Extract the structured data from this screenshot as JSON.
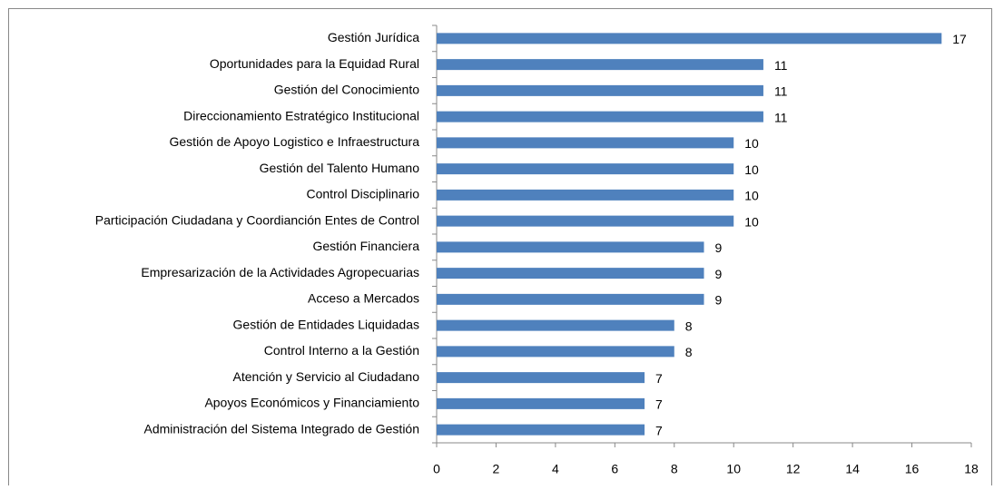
{
  "chart_data": {
    "type": "bar",
    "orientation": "horizontal",
    "categories": [
      "Gestión Jurídica",
      "Oportunidades para la Equidad Rural",
      "Gestión del Conocimiento",
      "Direccionamiento Estratégico  Institucional",
      "Gestión de Apoyo Logistico e Infraestructura",
      "Gestión del Talento Humano",
      "Control Disciplinario",
      "Participación Ciudadana  y Coordianción Entes de Control",
      "Gestión Financiera",
      "Empresarización de la Actividades Agropecuarias",
      "Acceso a Mercados",
      "Gestión de Entidades  Liquidadas",
      "Control Interno a la Gestión",
      "Atención y Servicio al Ciudadano",
      "Apoyos Económicos y Financiamiento",
      "Administración del Sistema Integrado de Gestión"
    ],
    "values": [
      17,
      11,
      11,
      11,
      10,
      10,
      10,
      10,
      9,
      9,
      9,
      8,
      8,
      7,
      7,
      7
    ],
    "color": "#4f81bd",
    "xlim": [
      0,
      18
    ],
    "xticks": [
      0,
      2,
      4,
      6,
      8,
      10,
      12,
      14,
      16,
      18
    ],
    "grid": false
  }
}
